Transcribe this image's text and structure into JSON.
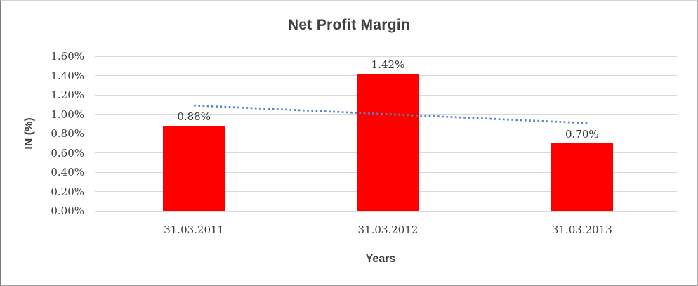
{
  "chart_data": {
    "type": "bar",
    "title": "Net Profit Margin",
    "categories": [
      "31.03.2011",
      "31.03.2012",
      "31.03.2013"
    ],
    "values": [
      0.88,
      1.42,
      0.7
    ],
    "data_labels": [
      "0.88%",
      "1.42%",
      "0.70%"
    ],
    "xlabel": "Years",
    "ylabel": "IN (%)",
    "ylim": [
      0,
      1.6
    ],
    "ytick_step": 0.2,
    "ytick_labels": [
      "0.00%",
      "0.20%",
      "0.40%",
      "0.60%",
      "0.80%",
      "1.00%",
      "1.20%",
      "1.40%",
      "1.60%"
    ],
    "grid": true,
    "legend_position": "none",
    "bar_color": "#FF0000",
    "grid_color": "#D9D9D9",
    "title_color": "#404040",
    "tick_text_color": "#3D3D3D",
    "trendline": {
      "type": "linear",
      "style": "dotted",
      "color": "#4E86C8",
      "start_value": 1.09,
      "end_value": 0.91
    }
  }
}
